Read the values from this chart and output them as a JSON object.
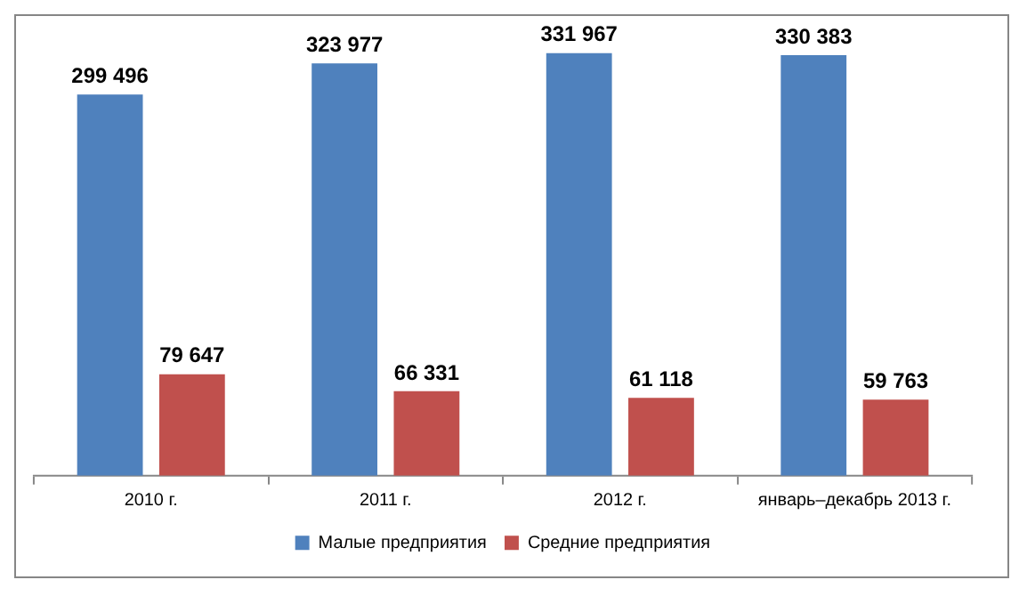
{
  "chart_data": {
    "type": "bar",
    "categories": [
      "2010 г.",
      "2011 г.",
      "2012 г.",
      "январь–декабрь 2013 г."
    ],
    "series": [
      {
        "name": "Малые предприятия",
        "color": "#4f81bd",
        "values": [
          299496,
          323977,
          331967,
          330383
        ],
        "value_labels": [
          "299 496",
          "323 977",
          "331 967",
          "330 383"
        ]
      },
      {
        "name": "Средние предприятия",
        "color": "#c0504d",
        "values": [
          79647,
          66331,
          61118,
          59763
        ],
        "value_labels": [
          "79 647",
          "66 331",
          "61 118",
          "59 763"
        ]
      }
    ],
    "legend": "bottom",
    "grid": false,
    "tick_labels": "x"
  }
}
